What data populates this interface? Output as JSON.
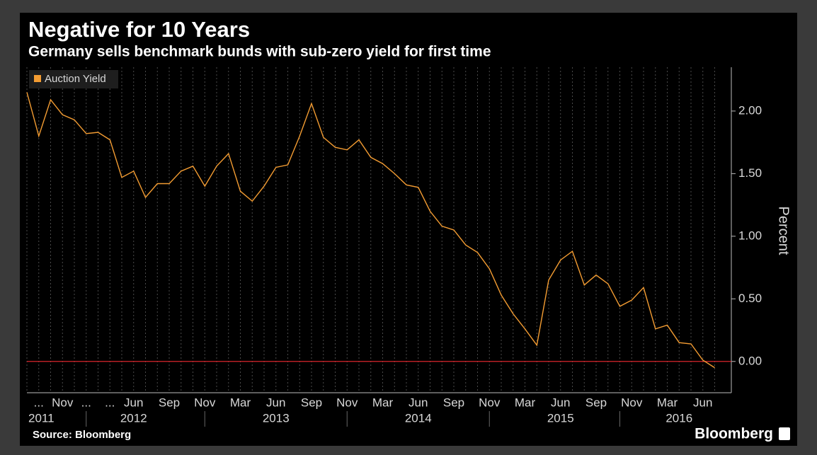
{
  "chart_data": {
    "type": "line",
    "title": "Negative for 10 Years",
    "subtitle": "Germany sells benchmark bunds with sub-zero yield for first time",
    "y_axis_label": "Percent",
    "source": "Source: Bloomberg",
    "brand": "Bloomberg",
    "categories": [
      null,
      "...",
      null,
      "Nov",
      null,
      "...",
      null,
      "...",
      null,
      "Jun",
      null,
      null,
      "Sep",
      null,
      null,
      "Nov",
      null,
      null,
      "Mar",
      null,
      null,
      "Jun",
      null,
      null,
      "Sep",
      null,
      null,
      "Nov",
      null,
      null,
      "Mar",
      null,
      null,
      "Jun",
      null,
      null,
      "Sep",
      null,
      null,
      "Nov",
      null,
      null,
      "Mar",
      null,
      null,
      "Jun",
      null,
      null,
      "Sep",
      null,
      null,
      "Nov",
      null,
      null,
      "Mar",
      null,
      null,
      "Jun",
      null
    ],
    "years": [
      null,
      "2011",
      null,
      null,
      null,
      null,
      null,
      null,
      null,
      "2012",
      null,
      null,
      null,
      null,
      null,
      null,
      null,
      null,
      null,
      null,
      null,
      "2013",
      null,
      null,
      null,
      null,
      null,
      null,
      null,
      null,
      null,
      null,
      null,
      "2014",
      null,
      null,
      null,
      null,
      null,
      null,
      null,
      null,
      null,
      null,
      null,
      "2015",
      null,
      null,
      null,
      null,
      null,
      null,
      null,
      null,
      null,
      "2016",
      null,
      null,
      null
    ],
    "series": [
      {
        "name": "Auction Yield",
        "color": "#f39c32",
        "values": [
          2.15,
          1.8,
          2.09,
          1.97,
          1.93,
          1.82,
          1.83,
          1.77,
          1.47,
          1.52,
          1.31,
          1.42,
          1.42,
          1.52,
          1.56,
          1.4,
          1.56,
          1.66,
          1.36,
          1.28,
          1.4,
          1.55,
          1.57,
          1.8,
          2.06,
          1.79,
          1.71,
          1.69,
          1.77,
          1.63,
          1.58,
          1.5,
          1.41,
          1.39,
          1.2,
          1.08,
          1.05,
          0.93,
          0.87,
          0.74,
          0.53,
          0.38,
          0.26,
          0.13,
          0.65,
          0.81,
          0.88,
          0.61,
          0.69,
          0.62,
          0.44,
          0.49,
          0.59,
          0.26,
          0.29,
          0.15,
          0.14,
          0.01,
          -0.05
        ]
      }
    ],
    "ylim": [
      -0.25,
      2.35
    ],
    "yticks": [
      {
        "value": 0,
        "label": "0.00"
      },
      {
        "value": 0.5,
        "label": "0.50"
      },
      {
        "value": 1,
        "label": "1.00"
      },
      {
        "value": 1.5,
        "label": "1.50"
      },
      {
        "value": 2,
        "label": "2.00"
      }
    ],
    "zero_line_color": "#d9262c",
    "grid": true,
    "legend": "top-left"
  }
}
